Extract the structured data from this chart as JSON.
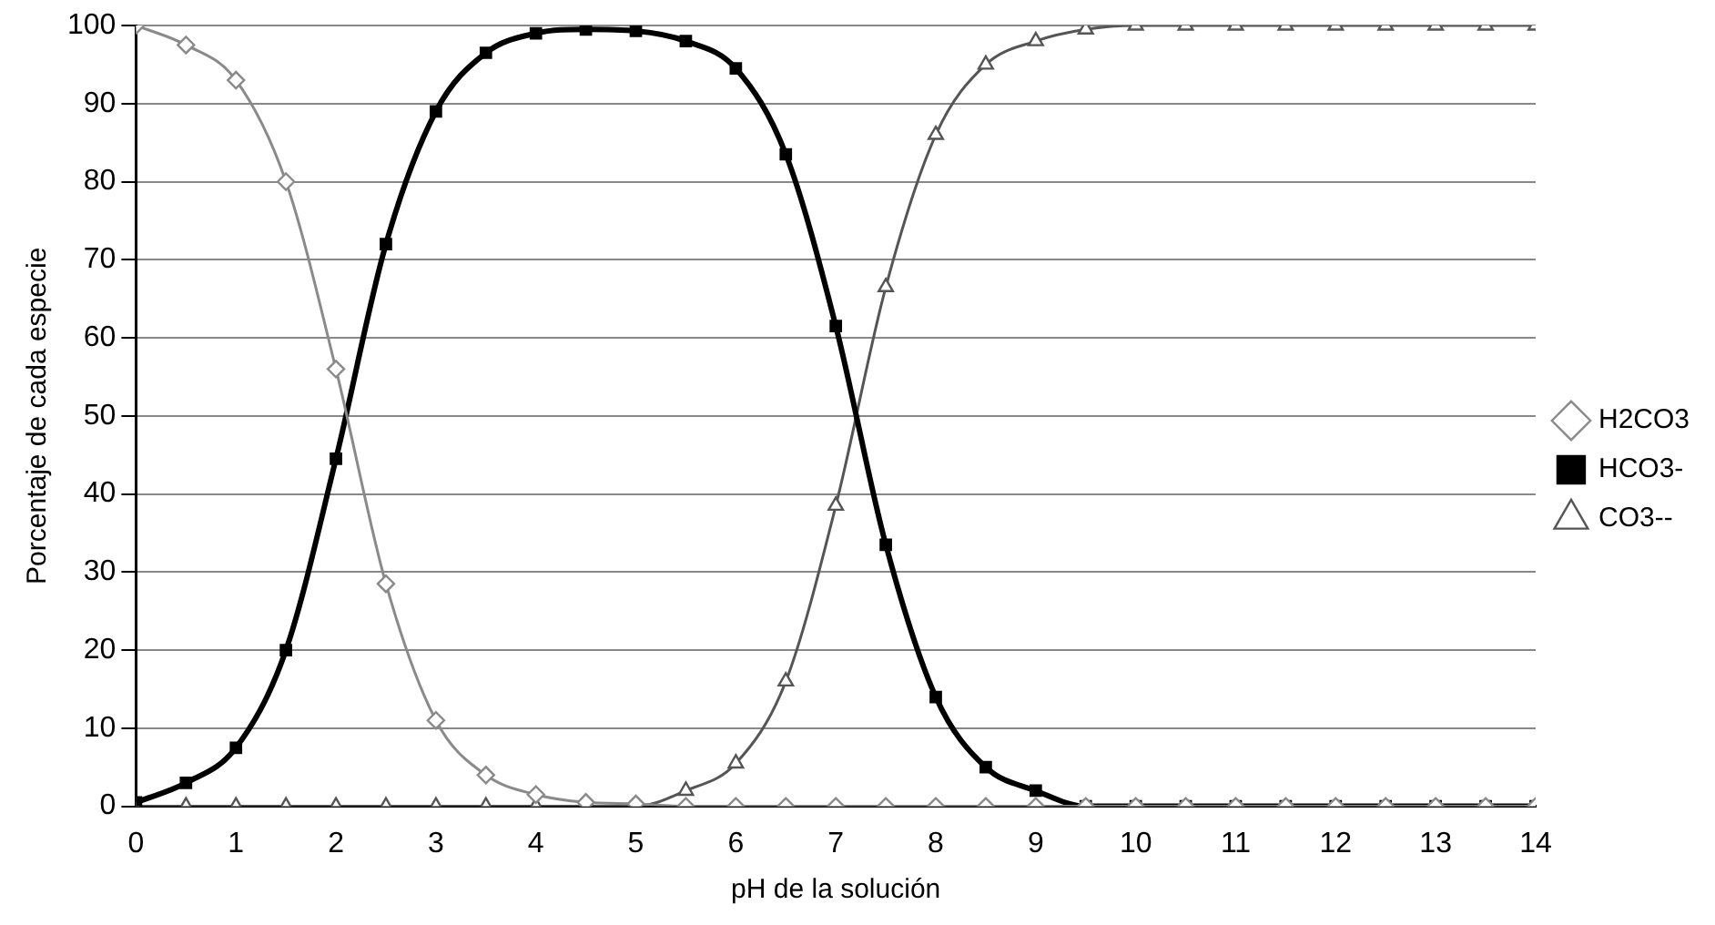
{
  "chart_data": {
    "type": "line",
    "xlabel": "pH de la solución",
    "ylabel": "Porcentaje de cada especie",
    "x": [
      0,
      0.5,
      1,
      1.5,
      2,
      2.5,
      3,
      3.5,
      4,
      4.5,
      5,
      5.5,
      6,
      6.5,
      7,
      7.5,
      8,
      8.5,
      9,
      9.5,
      10,
      10.5,
      11,
      11.5,
      12,
      12.5,
      13,
      13.5,
      14
    ],
    "series": [
      {
        "name": "H2CO3",
        "color": "#8a8a8a",
        "marker": "diamond",
        "values": [
          100,
          97.5,
          93,
          80,
          56,
          28.5,
          11,
          4,
          1.5,
          0.5,
          0.3,
          0,
          0,
          0,
          0,
          0,
          0,
          0,
          0,
          0,
          0,
          0,
          0,
          0,
          0,
          0,
          0,
          0,
          0
        ]
      },
      {
        "name": "HCO3-",
        "color": "#000000",
        "marker": "square",
        "values": [
          0.5,
          3,
          7.5,
          20,
          44.5,
          72,
          89,
          96.5,
          99,
          99.5,
          99.3,
          98,
          94.5,
          83.5,
          61.5,
          33.5,
          14,
          5,
          2,
          0,
          0,
          0,
          0,
          0,
          0,
          0,
          0,
          0,
          0
        ]
      },
      {
        "name": "CO3--",
        "color": "#555555",
        "marker": "triangle",
        "values": [
          0,
          0,
          0,
          0,
          0,
          0,
          0,
          0,
          0,
          0,
          0,
          2,
          5.5,
          16,
          38.5,
          66.5,
          86,
          95,
          98,
          99.5,
          100,
          100,
          100,
          100,
          100,
          100,
          100,
          100,
          100
        ]
      }
    ],
    "xlim": [
      0,
      14
    ],
    "xticks": [
      0,
      1,
      2,
      3,
      4,
      5,
      6,
      7,
      8,
      9,
      10,
      11,
      12,
      13,
      14
    ],
    "ylim": [
      0,
      100
    ],
    "yticks": [
      0,
      10,
      20,
      30,
      40,
      50,
      60,
      70,
      80,
      90,
      100
    ],
    "grid": "y",
    "legend": "right",
    "line_style": "solid"
  }
}
